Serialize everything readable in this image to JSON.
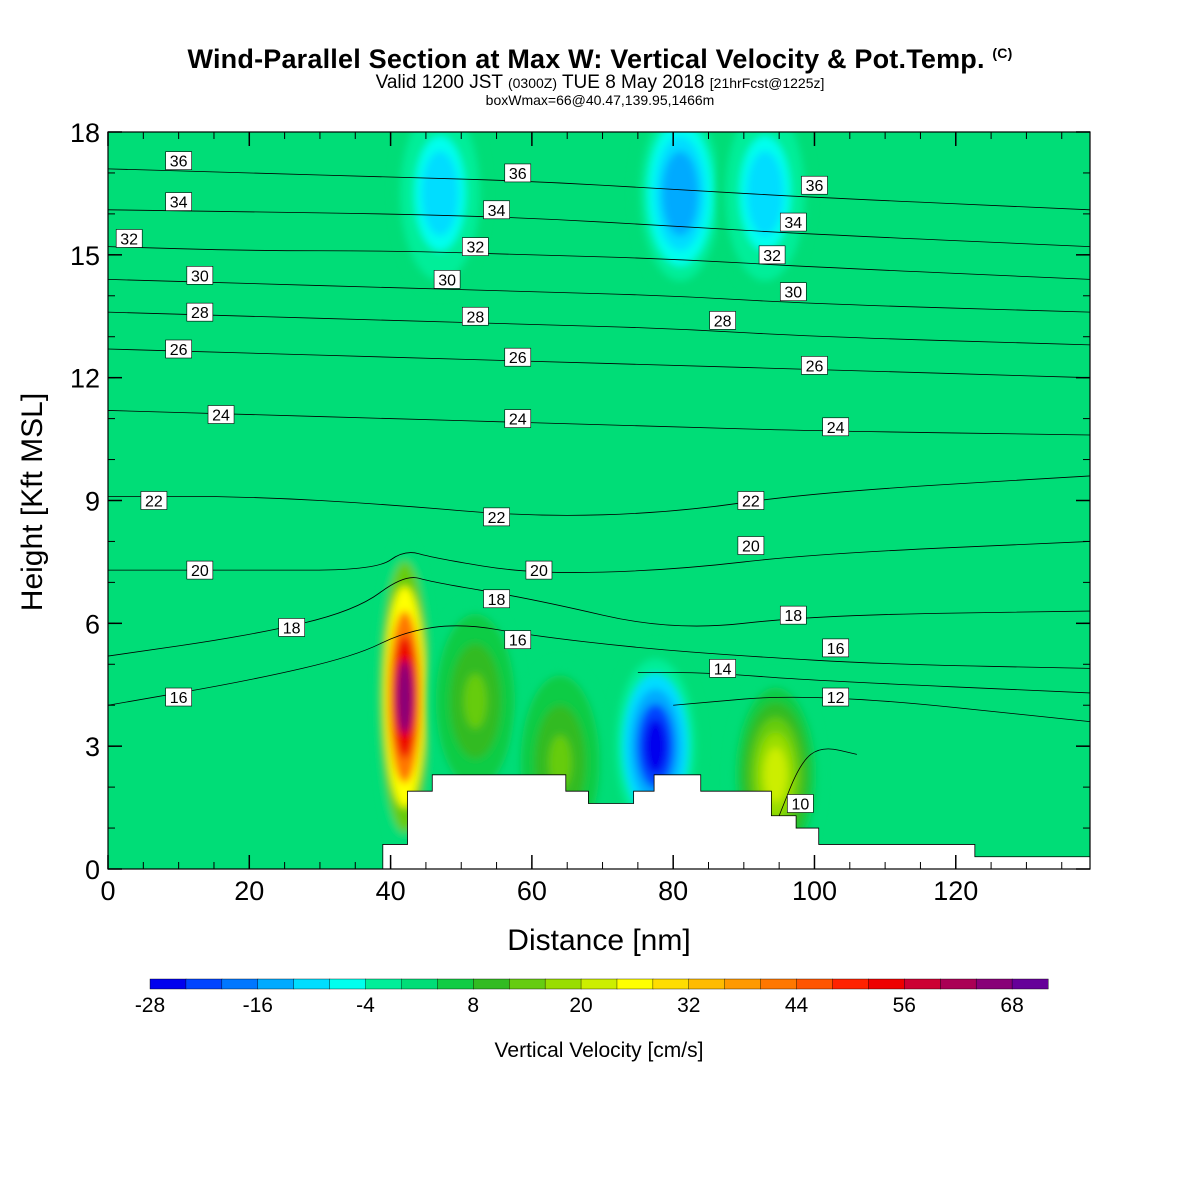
{
  "title": {
    "main": "Wind-Parallel Section at Max W: Vertical Velocity & Pot.Temp.",
    "copyright": "(C)",
    "valid_prefix": "Valid 1200 JST",
    "valid_utc": "(0300Z)",
    "valid_date": "TUE 8 May 2018",
    "valid_fcst": "[21hrFcst@1225z]",
    "box_info": "boxWmax=66@40.47,139.95,1466m"
  },
  "chart_data": {
    "type": "heatmap",
    "title": "Wind-Parallel Section at Max W: Vertical Velocity & Pot.Temp.",
    "xlabel": "Distance [nm]",
    "ylabel": "Height [Kft MSL]",
    "xlim": [
      0,
      139
    ],
    "ylim": [
      0,
      18
    ],
    "x_ticks": [
      0,
      20,
      40,
      60,
      80,
      100,
      120
    ],
    "y_ticks": [
      0,
      3,
      6,
      9,
      12,
      15,
      18
    ],
    "colorbar": {
      "label": "Vertical Velocity [cm/s]",
      "tick_labels": [
        -28,
        -16,
        -4,
        8,
        20,
        32,
        44,
        56,
        68
      ],
      "levels": [
        -28,
        -24,
        -20,
        -16,
        -12,
        -8,
        -4,
        0,
        4,
        8,
        12,
        16,
        20,
        24,
        28,
        32,
        36,
        40,
        44,
        48,
        52,
        56,
        60,
        64,
        68,
        72
      ],
      "colors": [
        "#0000ee",
        "#0044ff",
        "#0077ff",
        "#00aaff",
        "#00ddff",
        "#00ffee",
        "#00ee99",
        "#00dd77",
        "#11cc44",
        "#33bb22",
        "#66cc11",
        "#99dd00",
        "#ccee00",
        "#ffff00",
        "#ffdd00",
        "#ffbb00",
        "#ff9900",
        "#ff7700",
        "#ff5500",
        "#ff2200",
        "#ee0000",
        "#cc0033",
        "#aa0055",
        "#880077",
        "#660099"
      ]
    },
    "max_w": {
      "value": 66,
      "lat": 40.47,
      "lon": 139.95,
      "height_m": 1466
    },
    "terrain": {
      "x": [
        0,
        38.9,
        38.9,
        42.4,
        42.4,
        45.9,
        45.9,
        64.8,
        64.8,
        68,
        68,
        74.4,
        74.4,
        77.3,
        77.3,
        83.9,
        83.9,
        93.9,
        93.9,
        97.4,
        97.4,
        100.6,
        100.6,
        122.7,
        122.7,
        139
      ],
      "height": [
        0,
        0,
        0.6,
        0.6,
        1.9,
        1.9,
        2.3,
        2.3,
        1.9,
        1.9,
        1.6,
        1.6,
        1.9,
        1.9,
        2.3,
        2.3,
        1.9,
        1.9,
        1.3,
        1.3,
        1.0,
        1.0,
        0.6,
        0.6,
        0.3,
        0.3
      ]
    },
    "vertical_velocity_features": [
      {
        "name": "updraft",
        "x": 42,
        "height": 4.2,
        "peak": 66
      },
      {
        "name": "updraft",
        "x": 52,
        "height": 4.1,
        "peak": 14
      },
      {
        "name": "updraft",
        "x": 64,
        "height": 2.6,
        "peak": 12
      },
      {
        "name": "downdraft",
        "x": 77.5,
        "height": 3.0,
        "peak": -28
      },
      {
        "name": "updraft",
        "x": 94.5,
        "height": 2.3,
        "peak": 20
      },
      {
        "name": "downdraft",
        "x": 47,
        "height": 16.5,
        "peak": -12
      },
      {
        "name": "downdraft",
        "x": 81,
        "height": 16.5,
        "peak": -16
      },
      {
        "name": "downdraft",
        "x": 93,
        "height": 16.5,
        "peak": -12
      }
    ],
    "potential_temperature": {
      "contour_interval": 1,
      "contours": [
        {
          "value": 36,
          "points": [
            [
              0,
              17.1
            ],
            [
              20,
              17.0
            ],
            [
              40,
              16.9
            ],
            [
              60,
              16.8
            ],
            [
              80,
              16.6
            ],
            [
              100,
              16.4
            ],
            [
              139,
              16.1
            ]
          ]
        },
        {
          "value": 34,
          "points": [
            [
              0,
              16.1
            ],
            [
              20,
              16.05
            ],
            [
              40,
              16.0
            ],
            [
              60,
              15.9
            ],
            [
              80,
              15.7
            ],
            [
              100,
              15.5
            ],
            [
              139,
              15.2
            ]
          ]
        },
        {
          "value": 32,
          "points": [
            [
              0,
              15.2
            ],
            [
              20,
              15.1
            ],
            [
              40,
              15.1
            ],
            [
              60,
              15.0
            ],
            [
              80,
              14.9
            ],
            [
              100,
              14.7
            ],
            [
              139,
              14.4
            ]
          ]
        },
        {
          "value": 30,
          "points": [
            [
              0,
              14.4
            ],
            [
              20,
              14.3
            ],
            [
              40,
              14.2
            ],
            [
              60,
              14.1
            ],
            [
              80,
              14.0
            ],
            [
              100,
              13.8
            ],
            [
              139,
              13.6
            ]
          ]
        },
        {
          "value": 28,
          "points": [
            [
              0,
              13.6
            ],
            [
              20,
              13.5
            ],
            [
              40,
              13.4
            ],
            [
              60,
              13.3
            ],
            [
              80,
              13.2
            ],
            [
              100,
              13.0
            ],
            [
              139,
              12.8
            ]
          ]
        },
        {
          "value": 26,
          "points": [
            [
              0,
              12.7
            ],
            [
              20,
              12.6
            ],
            [
              40,
              12.5
            ],
            [
              60,
              12.4
            ],
            [
              80,
              12.3
            ],
            [
              100,
              12.2
            ],
            [
              139,
              12.0
            ]
          ]
        },
        {
          "value": 24,
          "points": [
            [
              0,
              11.2
            ],
            [
              20,
              11.1
            ],
            [
              40,
              11.0
            ],
            [
              60,
              10.9
            ],
            [
              80,
              10.8
            ],
            [
              100,
              10.7
            ],
            [
              139,
              10.6
            ]
          ]
        },
        {
          "value": 22,
          "points": [
            [
              0,
              9.1
            ],
            [
              20,
              9.1
            ],
            [
              40,
              8.9
            ],
            [
              60,
              8.6
            ],
            [
              80,
              8.7
            ],
            [
              100,
              9.2
            ],
            [
              139,
              9.6
            ]
          ]
        },
        {
          "value": 20,
          "points": [
            [
              0,
              7.3
            ],
            [
              20,
              7.3
            ],
            [
              38,
              7.3
            ],
            [
              42,
              7.8
            ],
            [
              46,
              7.6
            ],
            [
              60,
              7.2
            ],
            [
              80,
              7.3
            ],
            [
              100,
              7.7
            ],
            [
              139,
              8.0
            ]
          ]
        },
        {
          "value": 18,
          "points": [
            [
              0,
              5.2
            ],
            [
              20,
              5.7
            ],
            [
              35,
              6.3
            ],
            [
              42,
              7.2
            ],
            [
              46,
              7.0
            ],
            [
              60,
              6.6
            ],
            [
              80,
              5.8
            ],
            [
              100,
              6.2
            ],
            [
              139,
              6.3
            ]
          ]
        },
        {
          "value": 16,
          "points": [
            [
              0,
              4.0
            ],
            [
              20,
              4.6
            ],
            [
              35,
              5.2
            ],
            [
              42,
              5.8
            ],
            [
              50,
              6.0
            ],
            [
              60,
              5.7
            ],
            [
              75,
              5.4
            ],
            [
              90,
              5.2
            ],
            [
              110,
              5.0
            ],
            [
              139,
              4.9
            ]
          ]
        },
        {
          "value": 14,
          "points": [
            [
              75,
              4.8
            ],
            [
              85,
              4.8
            ],
            [
              100,
              4.6
            ],
            [
              139,
              4.3
            ]
          ]
        },
        {
          "value": 12,
          "points": [
            [
              80,
              4.0
            ],
            [
              100,
              4.3
            ],
            [
              139,
              3.6
            ]
          ]
        },
        {
          "value": 10,
          "points": [
            [
              95,
              1.3
            ],
            [
              98,
              2.6
            ],
            [
              101,
              3.0
            ],
            [
              106,
              2.8
            ]
          ]
        }
      ],
      "labels": [
        {
          "text": "36",
          "x": 10,
          "height": 17.3
        },
        {
          "text": "34",
          "x": 10,
          "height": 16.3
        },
        {
          "text": "32",
          "x": 3,
          "height": 15.4
        },
        {
          "text": "30",
          "x": 13,
          "height": 14.5
        },
        {
          "text": "28",
          "x": 13,
          "height": 13.6
        },
        {
          "text": "26",
          "x": 10,
          "height": 12.7
        },
        {
          "text": "24",
          "x": 16,
          "height": 11.1
        },
        {
          "text": "22",
          "x": 6.5,
          "height": 9.0
        },
        {
          "text": "20",
          "x": 13,
          "height": 7.3
        },
        {
          "text": "18",
          "x": 26,
          "height": 5.9
        },
        {
          "text": "16",
          "x": 10,
          "height": 4.2
        },
        {
          "text": "36",
          "x": 58,
          "height": 17.0
        },
        {
          "text": "34",
          "x": 55,
          "height": 16.1
        },
        {
          "text": "32",
          "x": 52,
          "height": 15.2
        },
        {
          "text": "30",
          "x": 48,
          "height": 14.4
        },
        {
          "text": "28",
          "x": 52,
          "height": 13.5
        },
        {
          "text": "26",
          "x": 58,
          "height": 12.5
        },
        {
          "text": "24",
          "x": 58,
          "height": 11.0
        },
        {
          "text": "22",
          "x": 55,
          "height": 8.6
        },
        {
          "text": "20",
          "x": 61,
          "height": 7.3
        },
        {
          "text": "18",
          "x": 55,
          "height": 6.6
        },
        {
          "text": "16",
          "x": 58,
          "height": 5.6
        },
        {
          "text": "36",
          "x": 100,
          "height": 16.7
        },
        {
          "text": "34",
          "x": 97,
          "height": 15.8
        },
        {
          "text": "32",
          "x": 94,
          "height": 15.0
        },
        {
          "text": "30",
          "x": 97,
          "height": 14.1
        },
        {
          "text": "28",
          "x": 87,
          "height": 13.4
        },
        {
          "text": "26",
          "x": 100,
          "height": 12.3
        },
        {
          "text": "24",
          "x": 103,
          "height": 10.8
        },
        {
          "text": "22",
          "x": 91,
          "height": 9.0
        },
        {
          "text": "20",
          "x": 91,
          "height": 7.9
        },
        {
          "text": "18",
          "x": 97,
          "height": 6.2
        },
        {
          "text": "16",
          "x": 103,
          "height": 5.4
        },
        {
          "text": "14",
          "x": 87,
          "height": 4.9
        },
        {
          "text": "12",
          "x": 103,
          "height": 4.2
        },
        {
          "text": "10",
          "x": 98,
          "height": 1.6
        }
      ]
    }
  }
}
